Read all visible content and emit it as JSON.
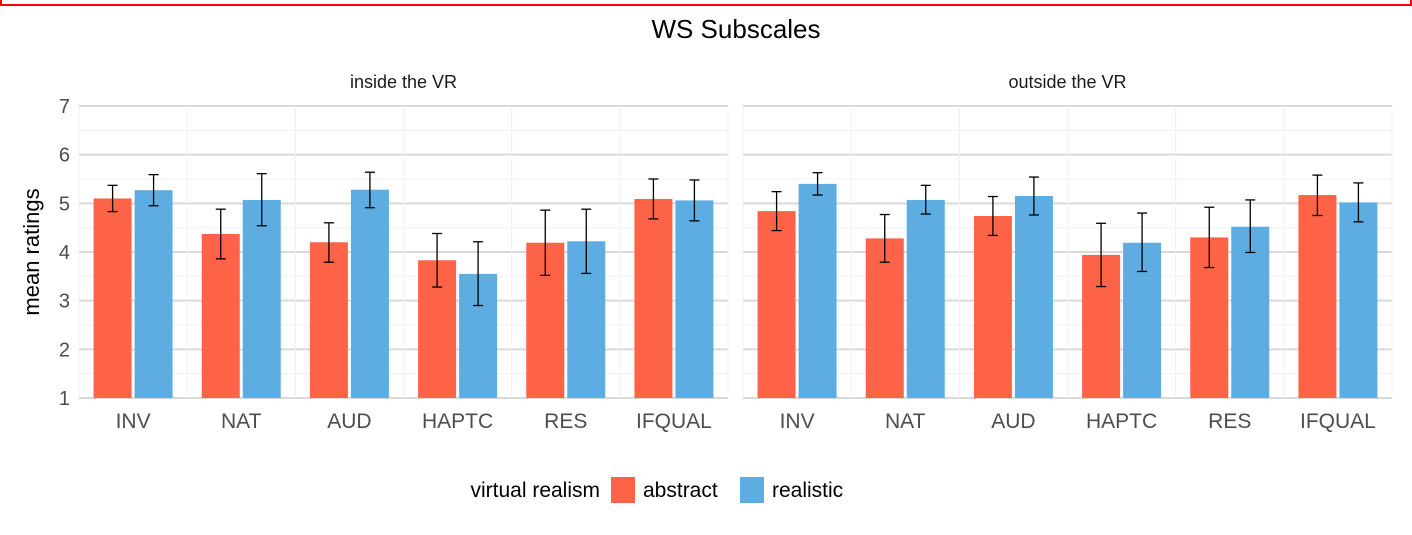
{
  "title": "WS Subscales",
  "ylabel": "mean ratings",
  "legend": {
    "title": "virtual realism",
    "items": [
      {
        "label": "abstract",
        "color": "#ff6347"
      },
      {
        "label": "realistic",
        "color": "#5dade2"
      }
    ]
  },
  "chart_data": [
    {
      "type": "bar",
      "facet": "inside the VR",
      "categories": [
        "INV",
        "NAT",
        "AUD",
        "HAPTC",
        "RES",
        "IFQUAL"
      ],
      "ylim": [
        1,
        7
      ],
      "yticks": [
        1,
        2,
        3,
        4,
        5,
        6,
        7
      ],
      "grid": true,
      "series": [
        {
          "name": "abstract",
          "color": "#ff6347",
          "values": [
            5.1,
            4.37,
            4.2,
            3.83,
            4.19,
            5.09
          ],
          "err_low": [
            4.83,
            3.86,
            3.79,
            3.28,
            3.52,
            4.68
          ],
          "err_high": [
            5.37,
            4.88,
            4.6,
            4.38,
            4.86,
            5.5
          ]
        },
        {
          "name": "realistic",
          "color": "#5dade2",
          "values": [
            5.27,
            5.07,
            5.28,
            3.55,
            4.22,
            5.06
          ],
          "err_low": [
            4.95,
            4.54,
            4.91,
            2.9,
            3.56,
            4.64
          ],
          "err_high": [
            5.59,
            5.61,
            5.64,
            4.21,
            4.88,
            5.48
          ]
        }
      ]
    },
    {
      "type": "bar",
      "facet": "outside the VR",
      "categories": [
        "INV",
        "NAT",
        "AUD",
        "HAPTC",
        "RES",
        "IFQUAL"
      ],
      "ylim": [
        1,
        7
      ],
      "yticks": [
        1,
        2,
        3,
        4,
        5,
        6,
        7
      ],
      "grid": true,
      "series": [
        {
          "name": "abstract",
          "color": "#ff6347",
          "values": [
            4.84,
            4.28,
            4.74,
            3.94,
            4.3,
            5.17
          ],
          "err_low": [
            4.44,
            3.79,
            4.34,
            3.29,
            3.68,
            4.75
          ],
          "err_high": [
            5.24,
            4.77,
            5.14,
            4.59,
            4.92,
            5.58
          ]
        },
        {
          "name": "realistic",
          "color": "#5dade2",
          "values": [
            5.4,
            5.07,
            5.15,
            4.19,
            4.52,
            5.02
          ],
          "err_low": [
            5.17,
            4.78,
            4.76,
            3.6,
            3.99,
            4.62
          ],
          "err_high": [
            5.63,
            5.37,
            5.54,
            4.8,
            5.07,
            5.42
          ]
        }
      ]
    }
  ]
}
